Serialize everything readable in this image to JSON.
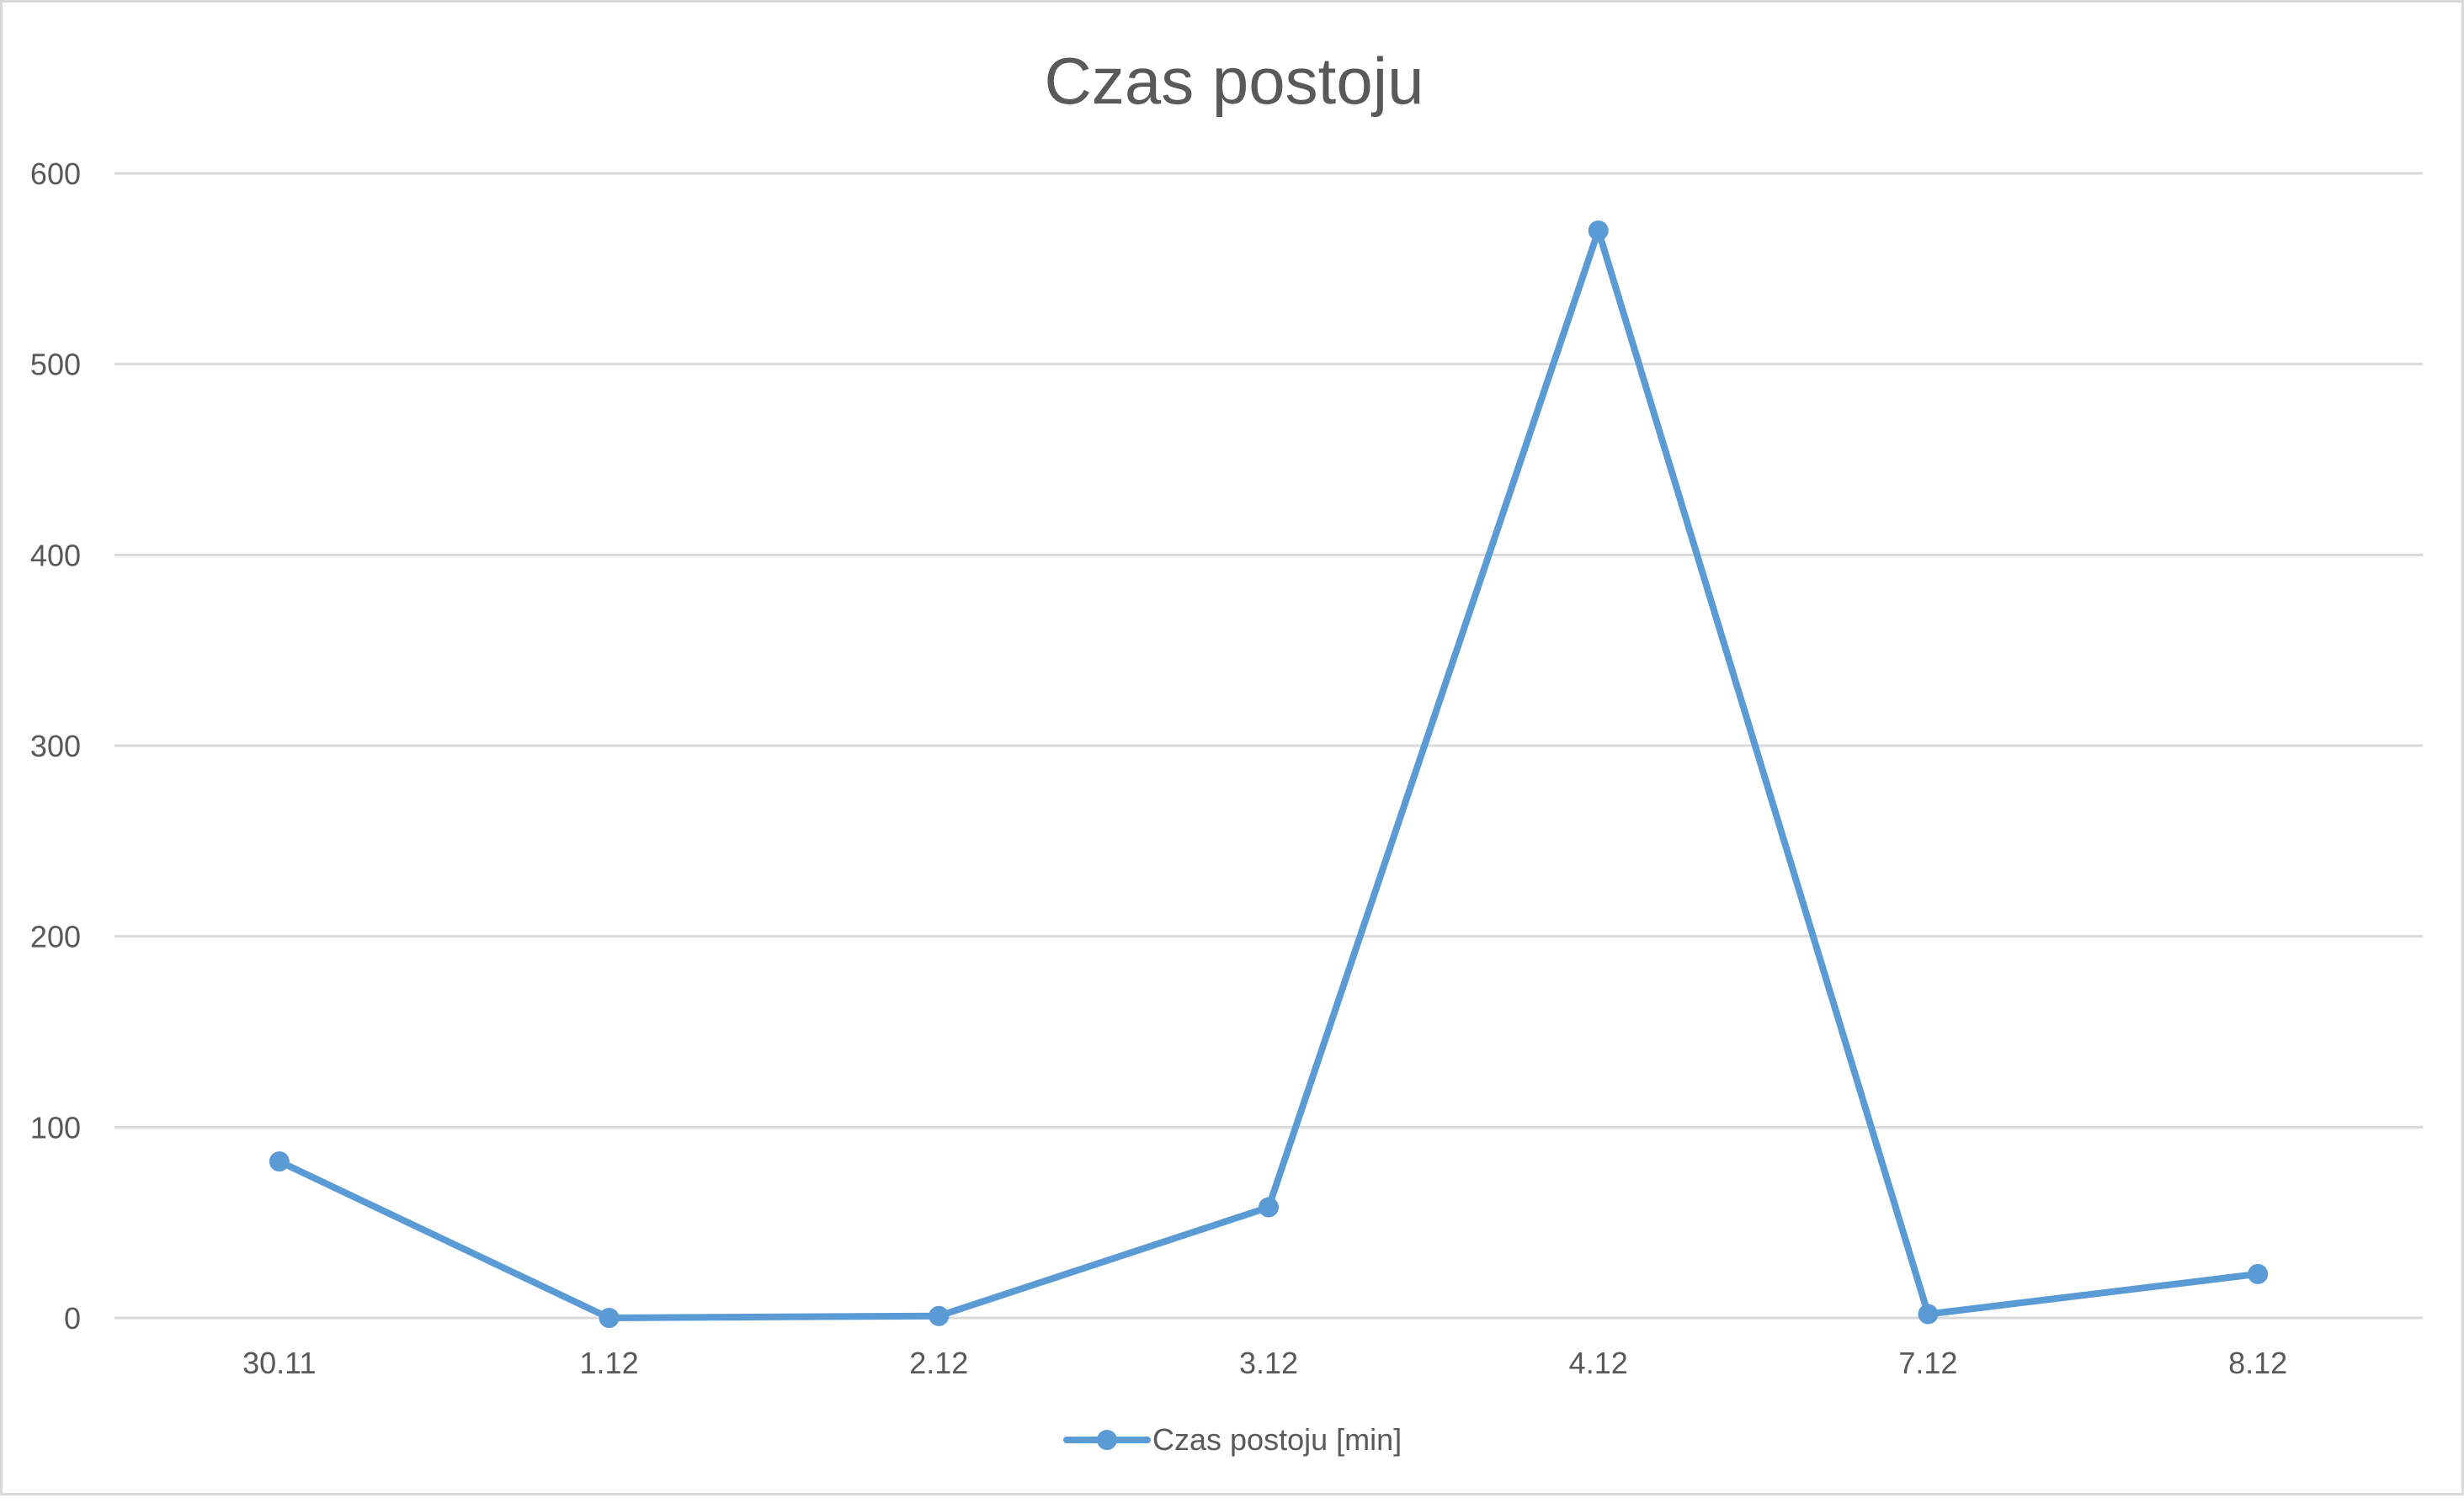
{
  "chart_data": {
    "type": "line",
    "title": "Czas postoju",
    "xlabel": "",
    "ylabel": "",
    "categories": [
      "30.11",
      "1.12",
      "2.12",
      "3.12",
      "4.12",
      "7.12",
      "8.12"
    ],
    "series": [
      {
        "name": "Czas postoju [min]",
        "values": [
          82,
          0,
          1,
          58,
          570,
          2,
          23
        ],
        "color": "#5b9bd5"
      }
    ],
    "ylim": [
      0,
      600
    ],
    "yticks": [
      0,
      100,
      200,
      300,
      400,
      500,
      600
    ],
    "grid": true,
    "legend": "bottom"
  }
}
